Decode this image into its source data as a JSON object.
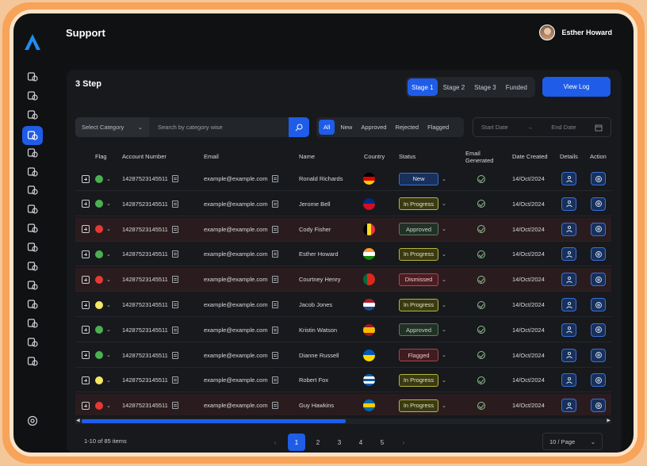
{
  "app": {
    "page_title": "Support",
    "user_name": "Esther Howard"
  },
  "card": {
    "title": "3 Step",
    "view_log": "View Log"
  },
  "stages": [
    "Stage 1",
    "Stage 2",
    "Stage 3",
    "Funded"
  ],
  "filters": {
    "category_placeholder": "Select Category",
    "search_placeholder": "Search by category wise",
    "status_chips": [
      "All",
      "New",
      "Approved",
      "Rejected",
      "Flagged"
    ],
    "start_date": "Start Date",
    "end_date": "End Date"
  },
  "table": {
    "headers": [
      "Flag",
      "Account Number",
      "Email",
      "Name",
      "Country",
      "Status",
      "Email Generated",
      "Date Created",
      "Details",
      "Action"
    ],
    "rows": [
      {
        "flag": "#4caf50",
        "account": "14287523145511",
        "email": "example@example.com",
        "name": "Ronald Richards",
        "country": "germany",
        "status": "New",
        "date": "14/Oct/2024",
        "highlight": false
      },
      {
        "flag": "#4caf50",
        "account": "14287523145511",
        "email": "example@example.com",
        "name": "Jerome Bell",
        "country": "liechtenstein",
        "status": "In Progress",
        "date": "14/Oct/2024",
        "highlight": false
      },
      {
        "flag": "#e53935",
        "account": "14287523145511",
        "email": "example@example.com",
        "name": "Cody Fisher",
        "country": "belgium",
        "status": "Approved",
        "date": "14/Oct/2024",
        "highlight": true
      },
      {
        "flag": "#4caf50",
        "account": "14287523145511",
        "email": "example@example.com",
        "name": "Esther Howard",
        "country": "india",
        "status": "In Progress",
        "date": "14/Oct/2024",
        "highlight": false
      },
      {
        "flag": "#e53935",
        "account": "14287523145511",
        "email": "example@example.com",
        "name": "Courtney Henry",
        "country": "portugal",
        "status": "Dismissed",
        "date": "14/Oct/2024",
        "highlight": true
      },
      {
        "flag": "#f5e663",
        "account": "14287523145511",
        "email": "example@example.com",
        "name": "Jacob Jones",
        "country": "netherlands",
        "status": "In Progress",
        "date": "14/Oct/2024",
        "highlight": false
      },
      {
        "flag": "#4caf50",
        "account": "14287523145511",
        "email": "example@example.com",
        "name": "Kristin Watson",
        "country": "spain",
        "status": "Approved",
        "date": "14/Oct/2024",
        "highlight": false
      },
      {
        "flag": "#4caf50",
        "account": "14287523145511",
        "email": "example@example.com",
        "name": "Dianne Russell",
        "country": "ukraine",
        "status": "Flagged",
        "date": "14/Oct/2024",
        "highlight": false
      },
      {
        "flag": "#f5e663",
        "account": "14287523145511",
        "email": "example@example.com",
        "name": "Robert Fox",
        "country": "greece",
        "status": "In Progress",
        "date": "14/Oct/2024",
        "highlight": false
      },
      {
        "flag": "#e53935",
        "account": "14287523145511",
        "email": "example@example.com",
        "name": "Guy Hawkins",
        "country": "sweden",
        "status": "In Progress",
        "date": "14/Oct/2024",
        "highlight": true
      }
    ]
  },
  "pagination": {
    "summary": "1-10 of 85 items",
    "pages": [
      "1",
      "2",
      "3",
      "4",
      "5"
    ],
    "per_page": "10 / Page",
    "prev": "‹",
    "next": "›"
  },
  "colors": {
    "accent": "#1f5ce8",
    "background": "#0f1113",
    "card": "#17191c"
  }
}
